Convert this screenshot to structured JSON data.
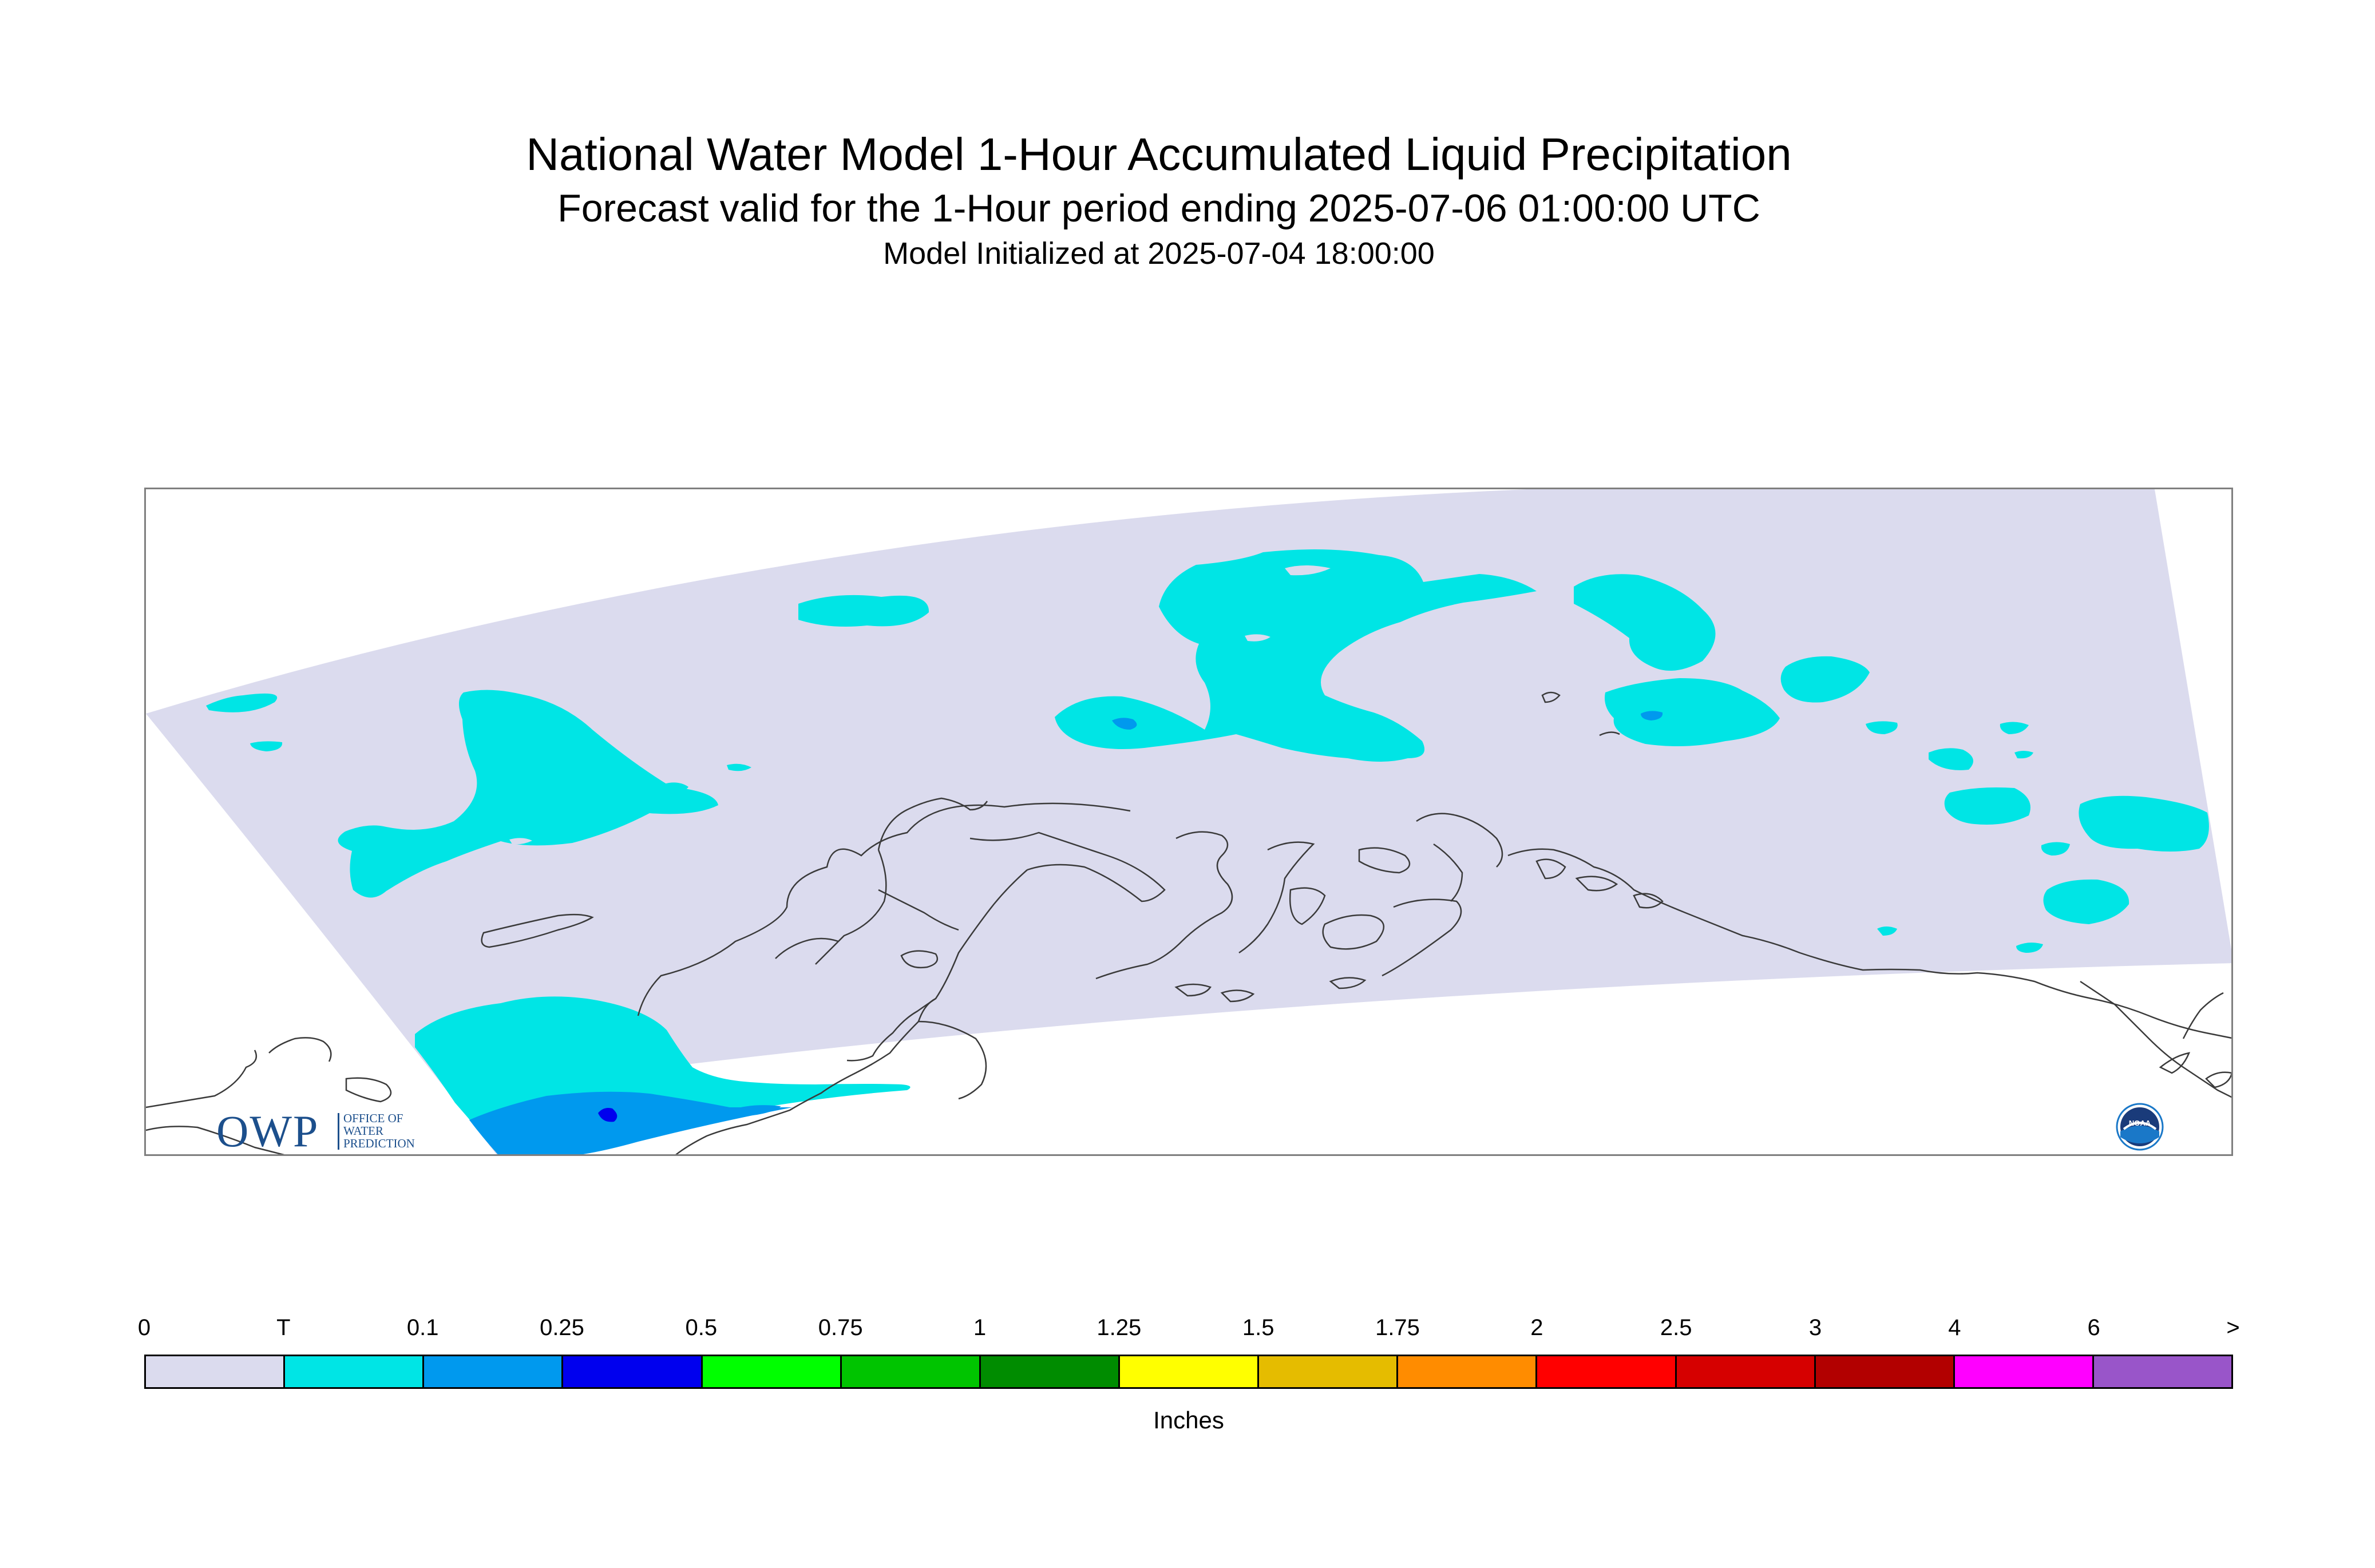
{
  "header": {
    "title": "National Water Model 1-Hour Accumulated Liquid Precipitation",
    "subtitle": "Forecast valid for the 1-Hour period ending 2025-07-06 01:00:00 UTC",
    "init_line": "Model Initialized at 2025-07-04 18:00:00"
  },
  "map": {
    "region": "Alaska",
    "domain_color": "#dbdbee",
    "coastline_color": "#3a3a3a",
    "precip_levels_shown": [
      {
        "level": "T",
        "color": "#00e5e5"
      },
      {
        "level": "0.1",
        "color": "#0099ee"
      },
      {
        "level": "0.25",
        "color": "#0000ee"
      }
    ]
  },
  "logos": {
    "owp_main": "OWP",
    "owp_sub_1": "OFFICE OF",
    "owp_sub_2": "WATER",
    "owp_sub_3": "PREDICTION",
    "noaa_text": "NOAA",
    "owp_color": "#1c4f8c",
    "noaa_color": "#1a78c8"
  },
  "legend": {
    "labels": [
      "0",
      "T",
      "0.1",
      "0.25",
      "0.5",
      "0.75",
      "1",
      "1.25",
      "1.5",
      "1.75",
      "2",
      "2.5",
      "3",
      "4",
      "6",
      ">"
    ],
    "colors": [
      "#dbdbee",
      "#00e5e5",
      "#0099ee",
      "#0000ee",
      "#00ff00",
      "#00c400",
      "#008c00",
      "#ffff00",
      "#e5bc00",
      "#ff8c00",
      "#ff0000",
      "#d60000",
      "#b20000",
      "#ff00ff",
      "#9955c9"
    ],
    "unit": "Inches"
  }
}
